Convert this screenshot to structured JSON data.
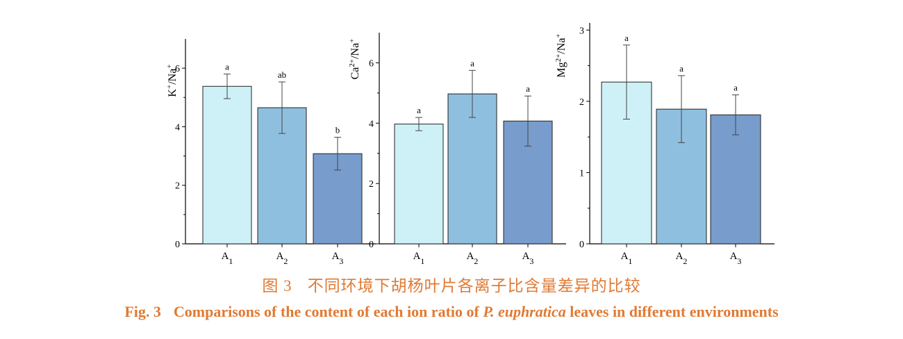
{
  "colors": {
    "A1": "#cdf1f6",
    "A2": "#8fbfdf",
    "A3": "#789ccc",
    "caption": "#e07a34"
  },
  "caption": {
    "cn_fignum": "图 3",
    "cn_text": "不同环境下胡杨叶片各离子比含量差异的比较",
    "en_fignum": "Fig. 3",
    "en_before": "Comparisons of the content of each ion ratio of ",
    "en_species": "P.  euphratica",
    "en_after": " leaves in different environments"
  },
  "chart_data": [
    {
      "type": "bar",
      "categories": [
        "A1",
        "A2",
        "A3"
      ],
      "values": [
        5.38,
        4.65,
        3.08
      ],
      "errors": [
        0.42,
        0.88,
        0.56
      ],
      "letters": [
        "a",
        "ab",
        "b"
      ],
      "ylabel": "K+/Na+",
      "ylim": [
        0,
        7
      ],
      "yticks": [
        0,
        2,
        4,
        6
      ]
    },
    {
      "type": "bar",
      "categories": [
        "A1",
        "A2",
        "A3"
      ],
      "values": [
        3.97,
        4.97,
        4.07
      ],
      "errors": [
        0.22,
        0.78,
        0.83
      ],
      "letters": [
        "a",
        "a",
        "a"
      ],
      "ylabel": "Ca2+/Na+",
      "ylim": [
        0,
        7
      ],
      "yticks": [
        0,
        2,
        4,
        6
      ]
    },
    {
      "type": "bar",
      "categories": [
        "A1",
        "A2",
        "A3"
      ],
      "values": [
        2.27,
        1.89,
        1.81
      ],
      "errors": [
        0.52,
        0.47,
        0.28
      ],
      "letters": [
        "a",
        "a",
        "a"
      ],
      "ylabel": "Mg2+/Na+",
      "ylim": [
        0,
        3.1
      ],
      "yticks": [
        0,
        1,
        2,
        3
      ]
    }
  ]
}
